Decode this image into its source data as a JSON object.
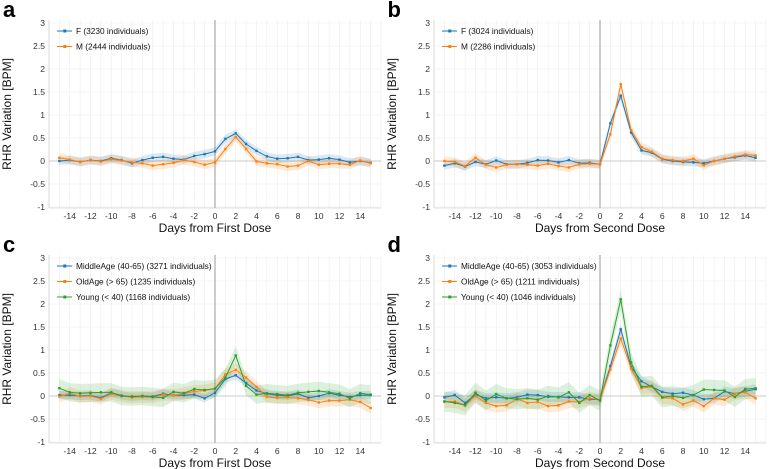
{
  "figure": {
    "background": "#ffffff",
    "grid_color": "#ececec",
    "zero_line_color": "#c9c9c9",
    "event_line_color": "#999999",
    "axis_line_color": "#d4d4d4",
    "text_color": "#111111",
    "tick_color": "#333333"
  },
  "chart_data": [
    {
      "type": "line",
      "panel_label": "a",
      "xlabel": "Days from First Dose",
      "ylabel": "RHR Variation [BPM]",
      "xlim": [
        -16,
        16
      ],
      "ylim": [
        -1,
        3
      ],
      "xticks": [
        -14,
        -12,
        -10,
        -8,
        -6,
        -4,
        -2,
        0,
        2,
        4,
        6,
        8,
        10,
        12,
        14
      ],
      "yticks": [
        -1,
        -0.5,
        0,
        0.5,
        1,
        1.5,
        2,
        2.5,
        3
      ],
      "grid": true,
      "zeroline": true,
      "vline_x": 0,
      "legend_position": "top-left",
      "x": [
        -15,
        -14,
        -13,
        -12,
        -11,
        -10,
        -9,
        -8,
        -7,
        -6,
        -5,
        -4,
        -3,
        -2,
        -1,
        0,
        1,
        2,
        3,
        4,
        5,
        6,
        7,
        8,
        9,
        10,
        11,
        12,
        13,
        14,
        15
      ],
      "series": [
        {
          "name": "F (3230 individuals)",
          "color": "#1f77b4",
          "band": 0.09,
          "values": [
            0.0,
            0.02,
            -0.02,
            0.02,
            0.0,
            0.06,
            0.02,
            -0.05,
            0.02,
            0.07,
            0.09,
            0.05,
            0.03,
            0.11,
            0.15,
            0.21,
            0.48,
            0.6,
            0.37,
            0.22,
            0.1,
            0.05,
            0.06,
            0.09,
            0.02,
            0.03,
            0.06,
            0.03,
            -0.03,
            0.0,
            -0.04
          ]
        },
        {
          "name": "M (2444 individuals)",
          "color": "#ff7f0e",
          "band": 0.1,
          "values": [
            0.07,
            0.03,
            -0.02,
            0.02,
            -0.01,
            0.04,
            0.01,
            -0.03,
            -0.05,
            -0.1,
            -0.07,
            -0.04,
            0.02,
            -0.02,
            -0.08,
            -0.03,
            0.26,
            0.52,
            0.26,
            -0.01,
            -0.05,
            -0.07,
            -0.12,
            -0.1,
            0.0,
            -0.08,
            -0.06,
            -0.06,
            -0.08,
            0.01,
            -0.05
          ]
        }
      ]
    },
    {
      "type": "line",
      "panel_label": "b",
      "xlabel": "Days from Second Dose",
      "ylabel": "RHR Variation [BPM]",
      "xlim": [
        -16,
        16
      ],
      "ylim": [
        -1,
        3
      ],
      "xticks": [
        -14,
        -12,
        -10,
        -8,
        -6,
        -4,
        -2,
        0,
        2,
        4,
        6,
        8,
        10,
        12,
        14
      ],
      "yticks": [
        -1,
        -0.5,
        0,
        0.5,
        1,
        1.5,
        2,
        2.5,
        3
      ],
      "grid": true,
      "zeroline": true,
      "vline_x": 0,
      "legend_position": "top-left",
      "x": [
        -15,
        -14,
        -13,
        -12,
        -11,
        -10,
        -9,
        -8,
        -7,
        -6,
        -5,
        -4,
        -3,
        -2,
        -1,
        0,
        1,
        2,
        3,
        4,
        5,
        6,
        7,
        8,
        9,
        10,
        11,
        12,
        13,
        14,
        15
      ],
      "series": [
        {
          "name": "F (3024 individuals)",
          "color": "#1f77b4",
          "band": 0.09,
          "values": [
            -0.1,
            -0.05,
            -0.12,
            -0.02,
            -0.07,
            0.01,
            -0.07,
            -0.07,
            -0.04,
            0.02,
            0.01,
            -0.03,
            0.02,
            -0.05,
            -0.04,
            -0.07,
            0.82,
            1.42,
            0.62,
            0.23,
            0.18,
            0.04,
            0.0,
            -0.02,
            -0.03,
            -0.05,
            0.0,
            0.05,
            0.08,
            0.12,
            0.07
          ]
        },
        {
          "name": "M (2286 individuals)",
          "color": "#ff7f0e",
          "band": 0.1,
          "values": [
            0.0,
            -0.02,
            -0.11,
            0.07,
            -0.08,
            -0.14,
            -0.08,
            -0.07,
            -0.08,
            -0.1,
            -0.06,
            -0.11,
            -0.14,
            -0.07,
            -0.06,
            -0.07,
            0.58,
            1.67,
            0.67,
            0.3,
            0.2,
            0.05,
            0.02,
            0.0,
            0.05,
            -0.09,
            0.0,
            0.05,
            0.1,
            0.14,
            0.12
          ]
        }
      ]
    },
    {
      "type": "line",
      "panel_label": "c",
      "xlabel": "Days from First Dose",
      "ylabel": "RHR Variation [BPM]",
      "xlim": [
        -16,
        16
      ],
      "ylim": [
        -1,
        3
      ],
      "xticks": [
        -14,
        -12,
        -10,
        -8,
        -6,
        -4,
        -2,
        0,
        2,
        4,
        6,
        8,
        10,
        12,
        14
      ],
      "yticks": [
        -1,
        -0.5,
        0,
        0.5,
        1,
        1.5,
        2,
        2.5,
        3
      ],
      "grid": true,
      "zeroline": true,
      "vline_x": 0,
      "legend_position": "top-left",
      "x": [
        -15,
        -14,
        -13,
        -12,
        -11,
        -10,
        -9,
        -8,
        -7,
        -6,
        -5,
        -4,
        -3,
        -2,
        -1,
        0,
        1,
        2,
        3,
        4,
        5,
        6,
        7,
        8,
        9,
        10,
        11,
        12,
        13,
        14,
        15
      ],
      "series": [
        {
          "name": "MiddleAge (40-65) (3271 individuals)",
          "color": "#1f77b4",
          "band": 0.09,
          "values": [
            0.02,
            0.02,
            0.0,
            0.01,
            -0.04,
            0.07,
            0.01,
            -0.02,
            0.0,
            -0.01,
            0.05,
            0.02,
            0.02,
            0.03,
            -0.05,
            0.07,
            0.37,
            0.45,
            0.28,
            0.12,
            0.05,
            0.02,
            0.0,
            0.05,
            -0.04,
            0.0,
            0.06,
            0.02,
            -0.02,
            0.02,
            0.02
          ]
        },
        {
          "name": "OldAge (> 65) (1235 individuals)",
          "color": "#ff7f0e",
          "band": 0.13,
          "values": [
            -0.01,
            0.06,
            -0.01,
            0.0,
            -0.06,
            0.05,
            0.0,
            -0.03,
            -0.02,
            -0.03,
            0.03,
            0.02,
            0.05,
            0.1,
            0.12,
            0.16,
            0.47,
            0.57,
            0.4,
            0.2,
            -0.02,
            -0.04,
            -0.03,
            -0.05,
            -0.08,
            -0.14,
            -0.1,
            -0.1,
            -0.08,
            -0.13,
            -0.26
          ]
        },
        {
          "name": "Young (< 40) (1168 individuals)",
          "color": "#2ca02c",
          "band": 0.2,
          "values": [
            0.17,
            0.08,
            0.06,
            0.07,
            0.08,
            0.08,
            0.0,
            -0.01,
            0.0,
            -0.02,
            -0.04,
            0.09,
            0.06,
            0.15,
            0.13,
            0.16,
            0.4,
            0.88,
            0.22,
            0.03,
            0.06,
            0.04,
            0.02,
            0.07,
            0.09,
            0.11,
            0.08,
            0.05,
            -0.05,
            0.06,
            0.03
          ]
        }
      ]
    },
    {
      "type": "line",
      "panel_label": "d",
      "xlabel": "Days from Second Dose",
      "ylabel": "RHR Variation [BPM]",
      "xlim": [
        -16,
        16
      ],
      "ylim": [
        -1,
        3
      ],
      "xticks": [
        -14,
        -12,
        -10,
        -8,
        -6,
        -4,
        -2,
        0,
        2,
        4,
        6,
        8,
        10,
        12,
        14
      ],
      "yticks": [
        -1,
        -0.5,
        0,
        0.5,
        1,
        1.5,
        2,
        2.5,
        3
      ],
      "grid": true,
      "zeroline": true,
      "vline_x": 0,
      "legend_position": "top-left",
      "x": [
        -15,
        -14,
        -13,
        -12,
        -11,
        -10,
        -9,
        -8,
        -7,
        -6,
        -5,
        -4,
        -3,
        -2,
        -1,
        0,
        1,
        2,
        3,
        4,
        5,
        6,
        7,
        8,
        9,
        10,
        11,
        12,
        13,
        14,
        15
      ],
      "series": [
        {
          "name": "MiddleAge (40-65) (3053 individuals)",
          "color": "#1f77b4",
          "band": 0.11,
          "values": [
            -0.03,
            0.02,
            -0.15,
            0.03,
            -0.05,
            -0.03,
            -0.05,
            -0.03,
            0.03,
            0.02,
            -0.02,
            -0.02,
            -0.03,
            -0.03,
            -0.07,
            -0.08,
            0.65,
            1.45,
            0.63,
            0.32,
            0.2,
            0.09,
            0.05,
            0.07,
            0.02,
            -0.07,
            -0.05,
            0.1,
            0.05,
            0.1,
            0.15
          ]
        },
        {
          "name": "OldAge (> 65) (1211 individuals)",
          "color": "#ff7f0e",
          "band": 0.14,
          "values": [
            -0.12,
            -0.12,
            -0.2,
            0.0,
            -0.15,
            -0.22,
            -0.2,
            -0.06,
            -0.15,
            -0.13,
            -0.22,
            -0.2,
            -0.12,
            -0.13,
            -0.05,
            -0.08,
            0.58,
            1.25,
            0.6,
            0.17,
            0.2,
            -0.04,
            -0.05,
            -0.18,
            -0.1,
            -0.22,
            -0.05,
            -0.08,
            0.05,
            0.08,
            -0.05
          ]
        },
        {
          "name": "Young (< 40) (1046 individuals)",
          "color": "#2ca02c",
          "band": 0.22,
          "values": [
            -0.12,
            -0.15,
            -0.2,
            0.07,
            -0.1,
            0.04,
            -0.05,
            -0.07,
            -0.05,
            -0.08,
            0.0,
            -0.03,
            0.08,
            -0.15,
            0.02,
            -0.1,
            1.1,
            2.1,
            0.73,
            0.2,
            0.22,
            -0.03,
            0.0,
            -0.04,
            0.02,
            0.14,
            0.13,
            0.12,
            -0.02,
            0.15,
            0.17
          ]
        }
      ]
    }
  ]
}
